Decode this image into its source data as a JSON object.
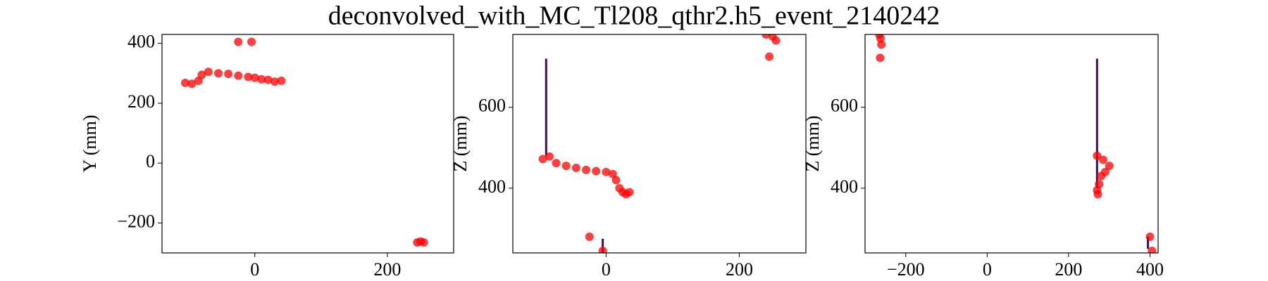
{
  "title": "deconvolved_with_MC_Tl208_qthr2.h5_event_2140242",
  "chart_data": [
    {
      "type": "scatter",
      "y_label": "Y (mm)",
      "color": "#ff0000",
      "segment_color": "#3b0f50",
      "xlim": [
        -140,
        300
      ],
      "ylim": [
        -300,
        430
      ],
      "xticks": [
        0,
        200
      ],
      "yticks": [
        {
          "value": -200,
          "label": "−200"
        },
        0,
        200,
        400
      ],
      "x": [
        -105,
        -95,
        -85,
        -80,
        -70,
        -55,
        -40,
        -25,
        -10,
        0,
        10,
        20,
        30,
        40,
        -25,
        -5,
        245,
        255,
        250
      ],
      "values": [
        268,
        265,
        275,
        295,
        305,
        300,
        298,
        292,
        288,
        285,
        280,
        278,
        272,
        275,
        405,
        405,
        -265,
        -265,
        -262
      ],
      "segments": []
    },
    {
      "type": "scatter",
      "y_label": "Z (mm)",
      "color": "#ff0000",
      "segment_color": "#3b0f50",
      "xlim": [
        -140,
        300
      ],
      "ylim": [
        240,
        780
      ],
      "xticks": [
        0,
        200
      ],
      "yticks": [
        400,
        600
      ],
      "x": [
        -95,
        -85,
        -75,
        -60,
        -45,
        -30,
        -15,
        0,
        10,
        15,
        20,
        25,
        30,
        35,
        -25,
        -5,
        240,
        250,
        255,
        245
      ],
      "values": [
        472,
        478,
        462,
        455,
        450,
        445,
        442,
        440,
        435,
        420,
        400,
        390,
        385,
        390,
        280,
        245,
        780,
        775,
        765,
        725
      ],
      "segments": [
        {
          "x": -90,
          "y": [
            480,
            720
          ]
        },
        {
          "x": -5,
          "y": [
            240,
            275
          ]
        }
      ]
    },
    {
      "type": "scatter",
      "y_label": "Z (mm)",
      "color": "#ff0000",
      "segment_color": "#3b0f50",
      "xlim": [
        -300,
        420
      ],
      "ylim": [
        240,
        780
      ],
      "xticks": [
        {
          "value": -200,
          "label": "−200"
        },
        0,
        200,
        400
      ],
      "yticks": [
        400,
        600
      ],
      "x": [
        -265,
        -262,
        -260,
        -263,
        270,
        285,
        300,
        290,
        280,
        275,
        270,
        272,
        400,
        405
      ],
      "values": [
        780,
        770,
        755,
        722,
        480,
        470,
        455,
        440,
        430,
        410,
        395,
        385,
        280,
        245
      ],
      "segments": [
        {
          "x": 270,
          "y": [
            400,
            720
          ]
        },
        {
          "x": 395,
          "y": [
            250,
            280
          ]
        }
      ]
    }
  ]
}
